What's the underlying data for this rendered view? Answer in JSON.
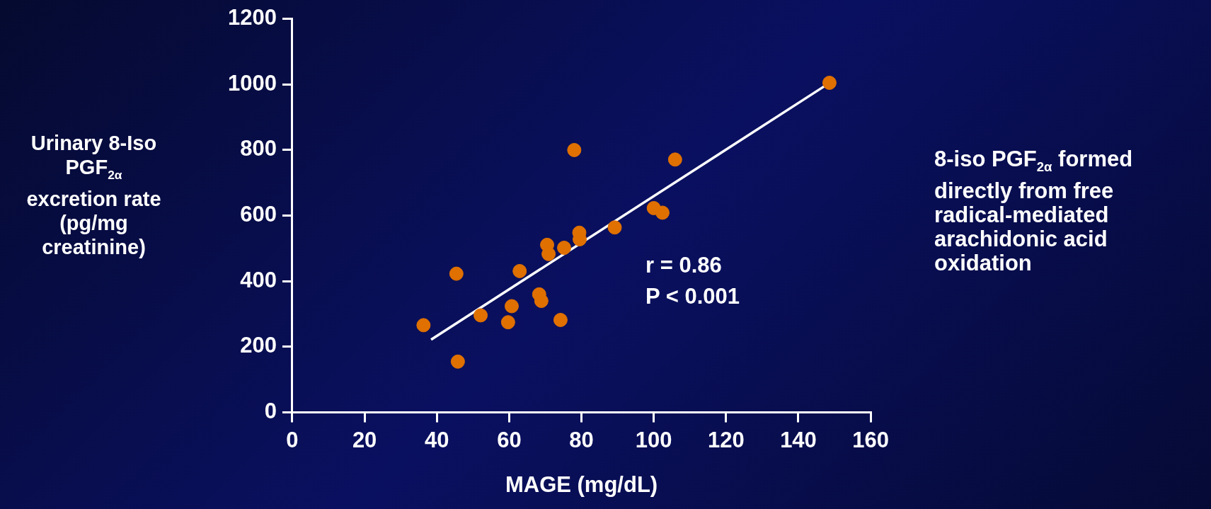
{
  "chart_data": {
    "type": "scatter",
    "xlabel": "MAGE (mg/dL)",
    "ylabel": "Urinary 8-Iso PGF$_{2α}$ excretion rate (pg/mg creatinine)",
    "xlim": [
      0,
      160
    ],
    "xticks": [
      0,
      20,
      40,
      60,
      80,
      100,
      120,
      140,
      160
    ],
    "ylim": [
      0,
      1200
    ],
    "yticks": [
      0,
      200,
      400,
      600,
      800,
      1000,
      1200
    ],
    "marker": "circle",
    "annotations": [
      "r = 0.86",
      "P < 0.001",
      "8-iso PGF$_{2α}$ formed directly from free radical-mediated arachidonic acid oxidation"
    ],
    "series": [
      {
        "color": "#e07000",
        "x": [
          36.3,
          45.4,
          45.8,
          52.1,
          59.7,
          60.7,
          62.9,
          68.3,
          68.9,
          70.5,
          70.9,
          74.2,
          75.2,
          78.0,
          79.4,
          79.5,
          89.2,
          100.0,
          102.4,
          105.9,
          148.6
        ],
        "values": [
          266,
          423,
          155,
          296,
          275,
          324,
          431,
          360,
          340,
          511,
          483,
          282,
          502,
          800,
          548,
          528,
          564,
          623,
          609,
          771,
          1005
        ]
      },
      {
        "type": "line",
        "marker": "none",
        "color": "#ffffff",
        "x": [
          38.4,
          147.4
        ],
        "values": [
          222,
          996
        ]
      }
    ]
  }
}
